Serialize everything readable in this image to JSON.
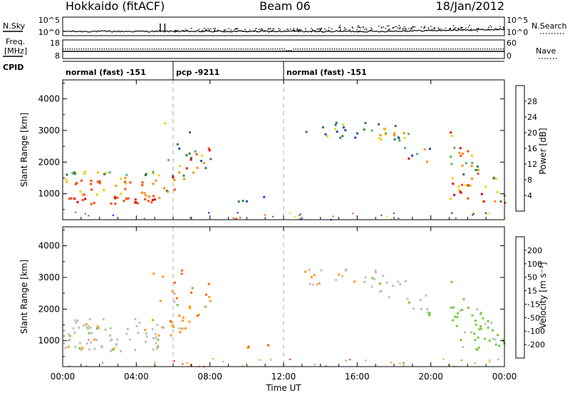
{
  "header": {
    "station": "Hokkaido (fitACF)",
    "beam": "Beam 06",
    "date": "18/Jan/2012"
  },
  "left_labels": {
    "nsky": "N.Sky",
    "freq_line1": "Freq.",
    "freq_line2": "[MHz]",
    "cpid": "CPID"
  },
  "right_labels": {
    "nsearch": "N.Search",
    "nave": "Nave"
  },
  "noise_panel": {
    "left_ticks": [
      "10^5",
      "10^0"
    ],
    "right_ticks": [
      "10^5",
      "10^0"
    ]
  },
  "freq_panel": {
    "left_ticks": [
      "18",
      "8"
    ],
    "right_ticks": [
      "60",
      "0"
    ]
  },
  "cpid_segments": [
    {
      "label": "normal (fast) -151",
      "start_hour": 0
    },
    {
      "label": "pcp -9211",
      "start_hour": 6
    },
    {
      "label": "normal (fast) -151",
      "start_hour": 12
    }
  ],
  "chart_data": [
    {
      "type": "heatmap",
      "name": "Power",
      "ylabel": "Slant Range [km]",
      "yticks": [
        1000,
        2000,
        3000,
        4000
      ],
      "ylim": [
        180,
        4600
      ],
      "xlim": [
        0,
        24
      ],
      "colorbar_label": "Power [dB]",
      "colorbar_ticks": [
        "4",
        "8",
        "12",
        "16",
        "20",
        "24",
        "28"
      ],
      "colorbar_range": [
        0,
        30
      ],
      "colors": [
        "#0000ff",
        "#1c4db8",
        "#2e7d4f",
        "#52b65a",
        "#f0d000",
        "#ff8c00",
        "#ff4500",
        "#e00000"
      ]
    },
    {
      "type": "heatmap",
      "name": "Velocity",
      "ylabel": "Slant Range [km]",
      "yticks": [
        1000,
        2000,
        3000,
        4000
      ],
      "ylim": [
        180,
        4600
      ],
      "xlim": [
        0,
        24
      ],
      "xlabel": "Time UT",
      "xticks": [
        "00:00",
        "04:00",
        "08:00",
        "12:00",
        "16:00",
        "20:00",
        "00:00"
      ],
      "colorbar_label": "Velocity [m s⁻¹]",
      "colorbar_ticks": [
        "200",
        "100",
        "50",
        "15",
        "-15",
        "-50",
        "-100",
        "-200"
      ],
      "colors": [
        "#0000cc",
        "#1f5fb0",
        "#2e8b57",
        "#6ccc3a",
        "#c0c0b8",
        "#ff9900",
        "#ff6600",
        "#ff2200",
        "#dd0000"
      ]
    }
  ]
}
